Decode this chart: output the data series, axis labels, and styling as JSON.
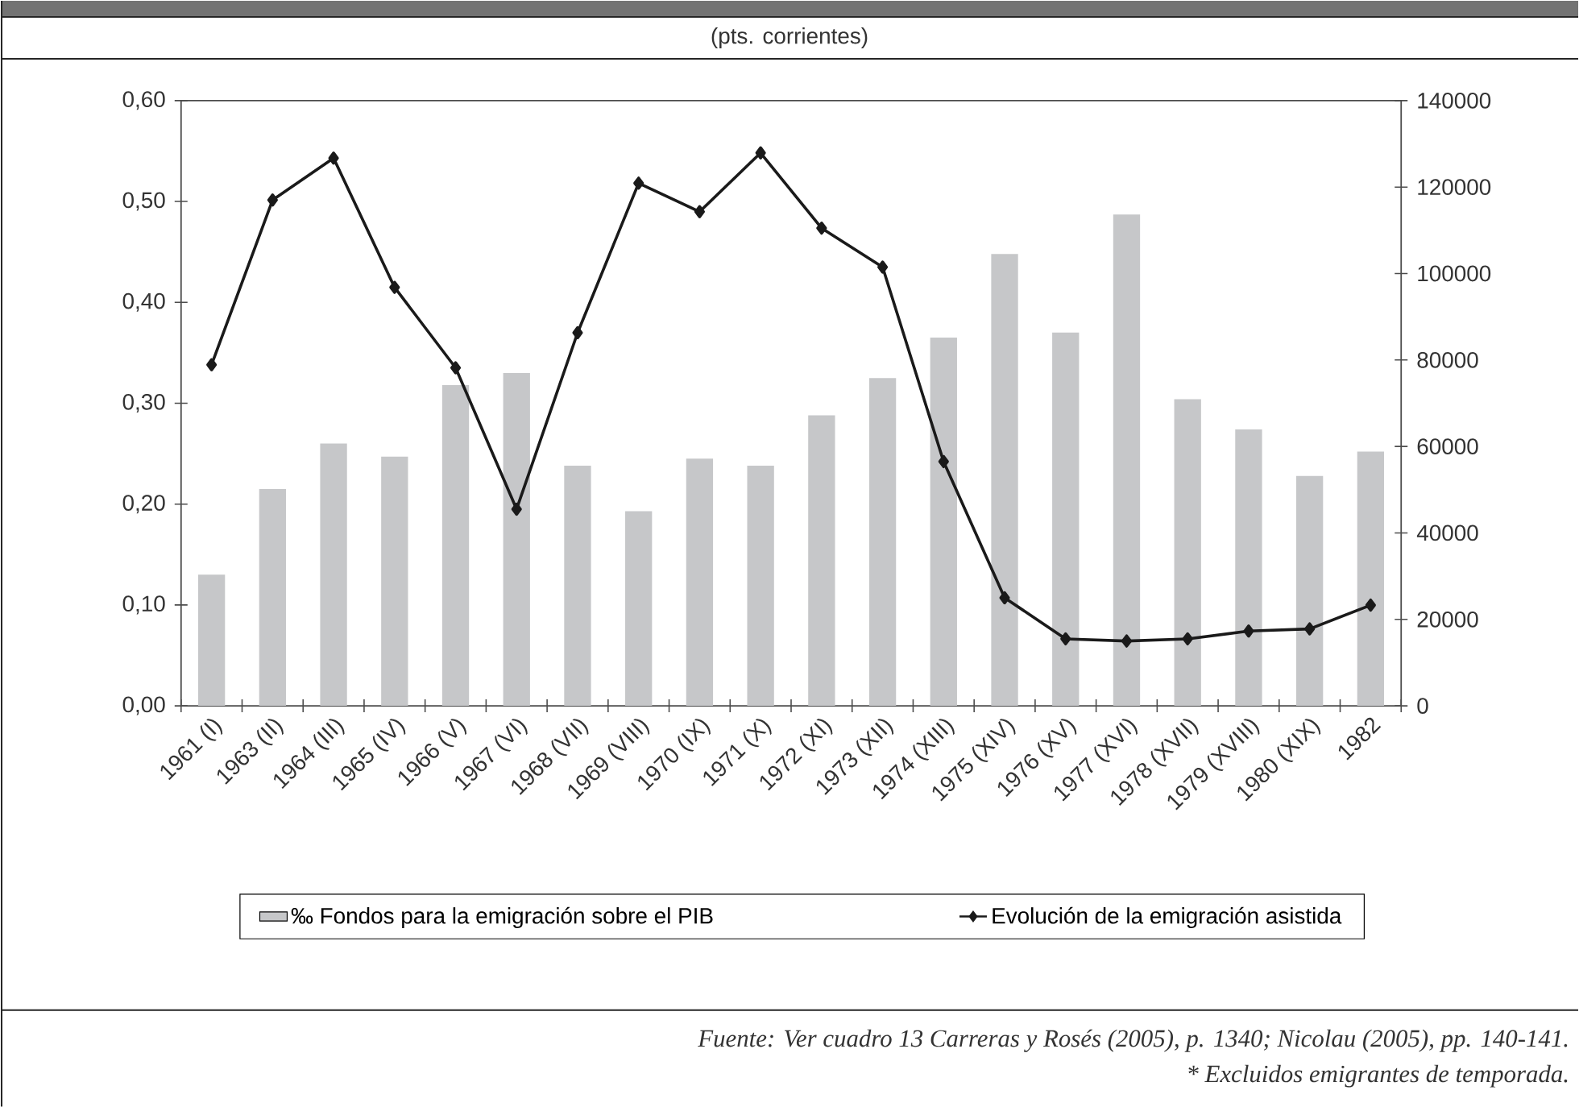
{
  "chart_data": {
    "type": "bar",
    "subtitle": "(pts. corrientes)",
    "categories": [
      "1961 (I)",
      "1963 (II)",
      "1964 (III)",
      "1965 (IV)",
      "1966 (V)",
      "1967 (VI)",
      "1968 (VII)",
      "1969 (VIII)",
      "1970 (IX)",
      "1971 (X)",
      "1972 (XI)",
      "1973 (XII)",
      "1974 (XIII)",
      "1975 (XIV)",
      "1976 (XV)",
      "1977 (XVI)",
      "1978 (XVII)",
      "1979 (XVIII)",
      "1980 (XIX)",
      "1982"
    ],
    "series": [
      {
        "name": "‰ Fondos para la emigración sobre el PIB",
        "color": "#c6c7c9",
        "values": [
          0.13,
          0.215,
          0.26,
          0.247,
          0.318,
          0.33,
          0.238,
          0.193,
          0.245,
          0.238,
          0.288,
          0.325,
          0.365,
          0.448,
          0.37,
          0.487,
          0.304,
          0.274,
          0.228,
          0.252
        ]
      },
      {
        "name": "Evolución de la emigración asistida",
        "type": "line",
        "axis": "y2",
        "color": "#1a1a1a",
        "marker": "diamond",
        "values": [
          78900,
          117000,
          126700,
          96800,
          78200,
          45500,
          86300,
          120900,
          114300,
          127900,
          110500,
          101500,
          56500,
          25000,
          15500,
          15000,
          15500,
          17300,
          17800,
          23300
        ]
      }
    ],
    "ylim": [
      0,
      0.6
    ],
    "yticks": [
      {
        "value": 0,
        "label": "0,00"
      },
      {
        "value": 0.1,
        "label": "0,10"
      },
      {
        "value": 0.2,
        "label": "0,20"
      },
      {
        "value": 0.3,
        "label": "0,30"
      },
      {
        "value": 0.4,
        "label": "0,40"
      },
      {
        "value": 0.5,
        "label": "0,50"
      },
      {
        "value": 0.6,
        "label": "0,60"
      }
    ],
    "y2lim": [
      0,
      140000
    ],
    "y2ticks": [
      0,
      20000,
      40000,
      60000,
      80000,
      100000,
      120000,
      140000
    ],
    "legend": "bottom",
    "grid": false,
    "annotations": [
      "Fuente: Ver cuadro 13 Carreras y Rosés (2005), p. 1340; Nicolau (2005), pp. 140-141.",
      "* Excluidos emigrantes de temporada."
    ]
  }
}
